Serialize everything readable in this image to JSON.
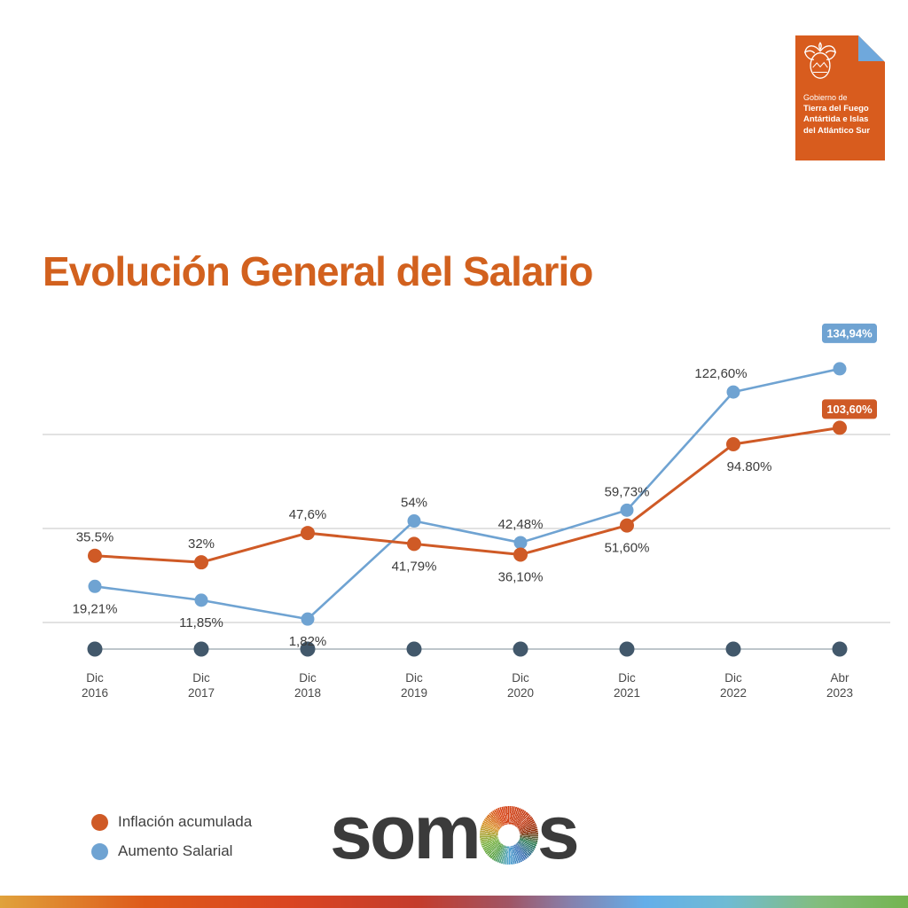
{
  "gov_logo": {
    "icon": "provincial-crest",
    "lines": [
      "Gobierno de",
      "Tierra del Fuego",
      "Antártida e Islas",
      "del Atlántico Sur"
    ],
    "bg_color": "#D85C1E",
    "fold_color": "#6FA8DC"
  },
  "title": {
    "text": "Evolución General del Salario",
    "color": "#D2611E"
  },
  "chart_data": {
    "type": "line",
    "title": "Evolución General del Salario",
    "categories": [
      {
        "month": "Dic",
        "year": "2016"
      },
      {
        "month": "Dic",
        "year": "2017"
      },
      {
        "month": "Dic",
        "year": "2018"
      },
      {
        "month": "Dic",
        "year": "2019"
      },
      {
        "month": "Dic",
        "year": "2020"
      },
      {
        "month": "Dic",
        "year": "2021"
      },
      {
        "month": "Dic",
        "year": "2022"
      },
      {
        "month": "Abr",
        "year": "2023"
      }
    ],
    "series": [
      {
        "name": "Inflación acumulada",
        "color": "#CF5A26",
        "values": [
          35.5,
          32,
          47.6,
          41.79,
          36.1,
          51.6,
          94.8,
          103.6
        ],
        "labels": [
          "35.5%",
          "32%",
          "47,6%",
          "41,79%",
          "36,10%",
          "51,60%",
          "94.80%",
          "103,60%"
        ],
        "label_pos": [
          "above",
          "above",
          "above",
          "below",
          "below",
          "below",
          "below",
          "badge"
        ],
        "label_dx": [
          0,
          0,
          0,
          0,
          0,
          0,
          18,
          11
        ],
        "badge_dy": -21
      },
      {
        "name": "Aumento Salarial",
        "color": "#6FA3D2",
        "values": [
          19.21,
          11.85,
          1.82,
          54,
          42.48,
          59.73,
          122.6,
          134.94
        ],
        "labels": [
          "19,21%",
          "11,85%",
          "1,82%",
          "54%",
          "42,48%",
          "59,73%",
          "122,60%",
          "134,94%"
        ],
        "label_pos": [
          "below",
          "below",
          "below",
          "above",
          "above",
          "above",
          "above",
          "badge"
        ],
        "label_dx": [
          0,
          0,
          0,
          0,
          0,
          0,
          -14,
          11
        ],
        "badge_dy": -40
      }
    ],
    "ylim": [
      0,
      160
    ],
    "gridline_values": [
      0,
      50,
      100
    ],
    "grid_on": true,
    "grid_color": "#C6C6C6",
    "axis_marker_color": "#42586B",
    "axis_line_color": "#97A3AC",
    "data_label_color": "#3C3C3C",
    "tick_label_color": "#4A4A4A",
    "badge_text_color": "#FFFFFF",
    "legend_position": "bottom-left"
  },
  "legend": {
    "items": [
      {
        "label": "Inflación acumulada",
        "color": "#CF5A26"
      },
      {
        "label": "Aumento Salarial",
        "color": "#6FA3D2"
      }
    ]
  },
  "brand": {
    "wordmark_left": "som",
    "wordmark_right": "s",
    "wheel_icon": "color-wheel",
    "text_color": "#3B3B3B"
  },
  "footer_bar": {
    "colors": [
      "#E0A23C",
      "#DE5A1A",
      "#DA4522",
      "#C43C2C",
      "#A05464",
      "#8582AE",
      "#64AEE9",
      "#6FBBD4",
      "#83BD7E",
      "#74B44F"
    ]
  }
}
